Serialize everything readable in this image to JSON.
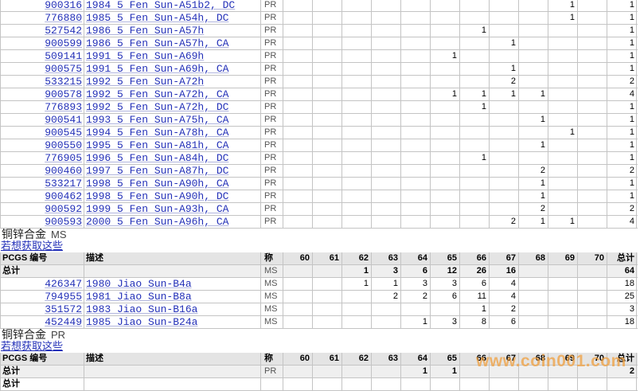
{
  "sections": [
    {
      "rows": [
        {
          "pcgs": "900316",
          "desc": "1984 5 Fen Sun-A51b2, DC",
          "grade": "PR",
          "counts": [
            null,
            null,
            null,
            null,
            null,
            null,
            null,
            null,
            null,
            1,
            null
          ],
          "total": 1
        },
        {
          "pcgs": "776880",
          "desc": "1985 5 Fen Sun-A54h, DC",
          "grade": "PR",
          "counts": [
            null,
            null,
            null,
            null,
            null,
            null,
            null,
            null,
            null,
            1,
            null
          ],
          "total": 1
        },
        {
          "pcgs": "527542",
          "desc": "1986 5 Fen Sun-A57h",
          "grade": "PR",
          "counts": [
            null,
            null,
            null,
            null,
            null,
            null,
            1,
            null,
            null,
            null,
            null
          ],
          "total": 1
        },
        {
          "pcgs": "900599",
          "desc": "1986 5 Fen Sun-A57h, CA",
          "grade": "PR",
          "counts": [
            null,
            null,
            null,
            null,
            null,
            null,
            null,
            1,
            null,
            null,
            null
          ],
          "total": 1
        },
        {
          "pcgs": "509141",
          "desc": "1991 5 Fen Sun-A69h",
          "grade": "PR",
          "counts": [
            null,
            null,
            null,
            null,
            null,
            1,
            null,
            null,
            null,
            null,
            null
          ],
          "total": 1
        },
        {
          "pcgs": "900575",
          "desc": "1991 5 Fen Sun-A69h, CA",
          "grade": "PR",
          "counts": [
            null,
            null,
            null,
            null,
            null,
            null,
            null,
            1,
            null,
            null,
            null
          ],
          "total": 1
        },
        {
          "pcgs": "533215",
          "desc": "1992 5 Fen Sun-A72h",
          "grade": "PR",
          "counts": [
            null,
            null,
            null,
            null,
            null,
            null,
            null,
            2,
            null,
            null,
            null
          ],
          "total": 2
        },
        {
          "pcgs": "900578",
          "desc": "1992 5 Fen Sun-A72h, CA",
          "grade": "PR",
          "counts": [
            null,
            null,
            null,
            null,
            null,
            1,
            1,
            1,
            1,
            null,
            null
          ],
          "total": 4
        },
        {
          "pcgs": "776893",
          "desc": "1992 5 Fen Sun-A72h, DC",
          "grade": "PR",
          "counts": [
            null,
            null,
            null,
            null,
            null,
            null,
            1,
            null,
            null,
            null,
            null
          ],
          "total": 1
        },
        {
          "pcgs": "900541",
          "desc": "1993 5 Fen Sun-A75h, CA",
          "grade": "PR",
          "counts": [
            null,
            null,
            null,
            null,
            null,
            null,
            null,
            null,
            1,
            null,
            null
          ],
          "total": 1
        },
        {
          "pcgs": "900545",
          "desc": "1994 5 Fen Sun-A78h, CA",
          "grade": "PR",
          "counts": [
            null,
            null,
            null,
            null,
            null,
            null,
            null,
            null,
            null,
            1,
            null
          ],
          "total": 1
        },
        {
          "pcgs": "900550",
          "desc": "1995 5 Fen Sun-A81h, CA",
          "grade": "PR",
          "counts": [
            null,
            null,
            null,
            null,
            null,
            null,
            null,
            null,
            1,
            null,
            null
          ],
          "total": 1
        },
        {
          "pcgs": "776905",
          "desc": "1996 5 Fen Sun-A84h, DC",
          "grade": "PR",
          "counts": [
            null,
            null,
            null,
            null,
            null,
            null,
            1,
            null,
            null,
            null,
            null
          ],
          "total": 1
        },
        {
          "pcgs": "900460",
          "desc": "1997 5 Fen Sun-A87h, DC",
          "grade": "PR",
          "counts": [
            null,
            null,
            null,
            null,
            null,
            null,
            null,
            null,
            2,
            null,
            null
          ],
          "total": 2
        },
        {
          "pcgs": "533217",
          "desc": "1998 5 Fen Sun-A90h, CA",
          "grade": "PR",
          "counts": [
            null,
            null,
            null,
            null,
            null,
            null,
            null,
            null,
            1,
            null,
            null
          ],
          "total": 1
        },
        {
          "pcgs": "900462",
          "desc": "1998 5 Fen Sun-A90h, DC",
          "grade": "PR",
          "counts": [
            null,
            null,
            null,
            null,
            null,
            null,
            null,
            null,
            1,
            null,
            null
          ],
          "total": 1
        },
        {
          "pcgs": "900592",
          "desc": "1999 5 Fen Sun-A93h, CA",
          "grade": "PR",
          "counts": [
            null,
            null,
            null,
            null,
            null,
            null,
            null,
            null,
            2,
            null,
            null
          ],
          "total": 2
        },
        {
          "pcgs": "900593",
          "desc": "2000 5 Fen Sun-A96h, CA",
          "grade": "PR",
          "counts": [
            null,
            null,
            null,
            null,
            null,
            null,
            null,
            2,
            1,
            1,
            null
          ],
          "total": 4
        }
      ]
    },
    {
      "title": "铜锌合金",
      "title_grade": "MS",
      "link": "若想获取这些",
      "header": {
        "pcgs": "PCGS 编号",
        "desc": "描述",
        "grade": "称",
        "grades": [
          "60",
          "61",
          "62",
          "63",
          "64",
          "65",
          "66",
          "67",
          "68",
          "69",
          "70"
        ],
        "total": "总计"
      },
      "summary": {
        "label": "总计",
        "grade": "MS",
        "counts": [
          null,
          null,
          1,
          3,
          6,
          12,
          26,
          16,
          null,
          null,
          null
        ],
        "total": 64
      },
      "rows": [
        {
          "pcgs": "426347",
          "desc": "1980 Jiao Sun-B4a",
          "grade": "MS",
          "counts": [
            null,
            null,
            1,
            1,
            3,
            3,
            6,
            4,
            null,
            null,
            null
          ],
          "total": 18
        },
        {
          "pcgs": "794955",
          "desc": "1981 Jiao Sun-B8a",
          "grade": "MS",
          "counts": [
            null,
            null,
            null,
            2,
            2,
            6,
            11,
            4,
            null,
            null,
            null
          ],
          "total": 25
        },
        {
          "pcgs": "351572",
          "desc": "1983 Jiao Sun-B16a",
          "grade": "MS",
          "counts": [
            null,
            null,
            null,
            null,
            null,
            null,
            1,
            2,
            null,
            null,
            null
          ],
          "total": 3
        },
        {
          "pcgs": "452449",
          "desc": "1985 Jiao Sun-B24a",
          "grade": "MS",
          "counts": [
            null,
            null,
            null,
            null,
            1,
            3,
            8,
            6,
            null,
            null,
            null
          ],
          "total": 18
        }
      ]
    },
    {
      "title": "铜锌合金",
      "title_grade": "PR",
      "link": "若想获取这些",
      "header": {
        "pcgs": "PCGS 编号",
        "desc": "描述",
        "grade": "称",
        "grades": [
          "60",
          "61",
          "62",
          "63",
          "64",
          "65",
          "66",
          "67",
          "68",
          "69",
          "70"
        ],
        "total": "总计"
      },
      "summary": {
        "label": "总计",
        "grade": "PR",
        "counts": [
          null,
          null,
          null,
          null,
          1,
          1,
          null,
          null,
          null,
          null,
          null
        ],
        "total": 2
      },
      "rows": [
        {
          "label": "总计"
        }
      ]
    }
  ],
  "watermark": "www.coin001.com"
}
